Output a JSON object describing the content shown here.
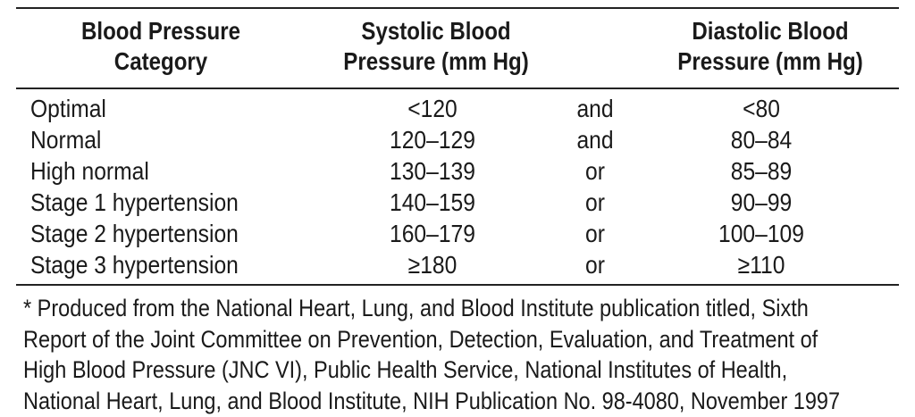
{
  "table": {
    "headers": {
      "category": [
        "Blood Pressure",
        "Category"
      ],
      "systolic": [
        "Systolic Blood",
        "Pressure (mm Hg)"
      ],
      "diastolic": [
        "Diastolic Blood",
        "Pressure (mm Hg)"
      ]
    },
    "rows": [
      {
        "category": "Optimal",
        "systolic": "<120",
        "conjunction": "and",
        "diastolic": "<80"
      },
      {
        "category": "Normal",
        "systolic": "120–129",
        "conjunction": "and",
        "diastolic": "80–84"
      },
      {
        "category": "High normal",
        "systolic": "130–139",
        "conjunction": "or",
        "diastolic": "85–89"
      },
      {
        "category": "Stage 1 hypertension",
        "systolic": "140–159",
        "conjunction": "or",
        "diastolic": "90–99"
      },
      {
        "category": "Stage 2 hypertension",
        "systolic": "160–179",
        "conjunction": "or",
        "diastolic": "100–109"
      },
      {
        "category": "Stage 3 hypertension",
        "systolic": "≥180",
        "conjunction": "or",
        "diastolic": "≥110"
      }
    ]
  },
  "footnote": {
    "lines": [
      "* Produced from the National Heart, Lung, and Blood Institute publication titled, Sixth",
      "Report of the Joint Committee on Prevention, Detection, Evaluation, and Treatment of",
      "High Blood Pressure (JNC VI), Public Health Service, National Institutes of Health,",
      "National Heart, Lung, and Blood Institute, NIH Publication No. 98-4080, November 1997"
    ]
  }
}
